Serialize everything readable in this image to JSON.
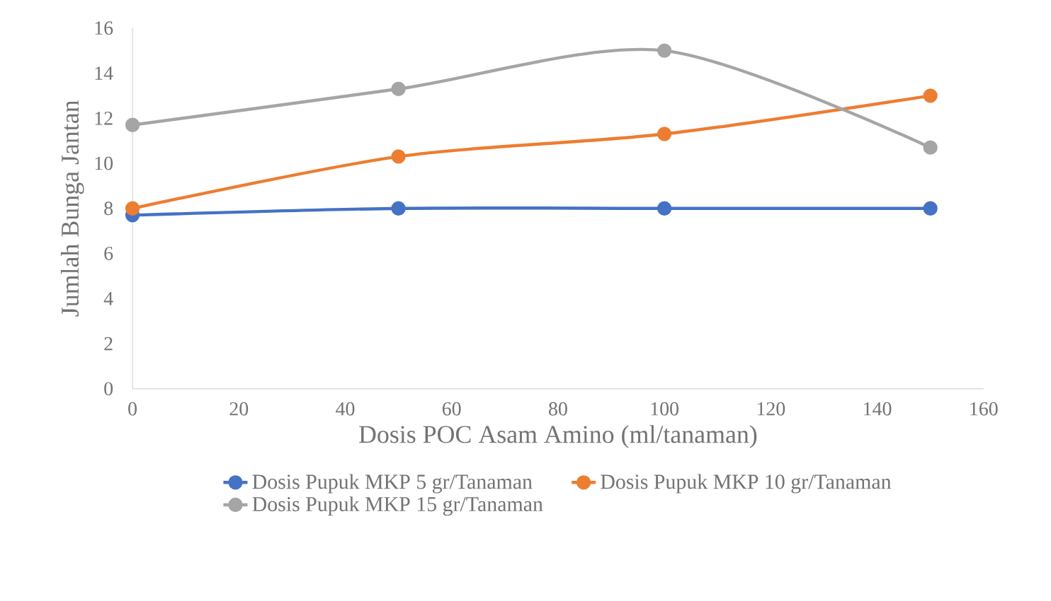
{
  "chart_data": {
    "type": "line",
    "xlabel": "Dosis POC Asam Amino (ml/tanaman)",
    "ylabel": "Jumlah Bunga Jantan",
    "x": [
      0,
      50,
      100,
      150
    ],
    "series": [
      {
        "name": "Dosis Pupuk MKP 5 gr/Tanaman",
        "color": "#4472c4",
        "values": [
          7.7,
          8,
          8,
          8
        ]
      },
      {
        "name": "Dosis Pupuk MKP 10 gr/Tanaman",
        "color": "#ed7d31",
        "values": [
          8,
          10.3,
          11.3,
          13
        ]
      },
      {
        "name": "Dosis Pupuk MKP 15 gr/Tanaman",
        "color": "#a5a5a5",
        "values": [
          11.7,
          13.3,
          15,
          10.7
        ]
      }
    ],
    "xlim": [
      0,
      160
    ],
    "xticks": [
      0,
      20,
      40,
      60,
      80,
      100,
      120,
      140,
      160
    ],
    "ylim": [
      0,
      16
    ],
    "yticks": [
      0,
      2,
      4,
      6,
      8,
      10,
      12,
      14,
      16
    ],
    "legend": "bottom",
    "marker": "circle",
    "line_style": "solid",
    "grid": false
  }
}
